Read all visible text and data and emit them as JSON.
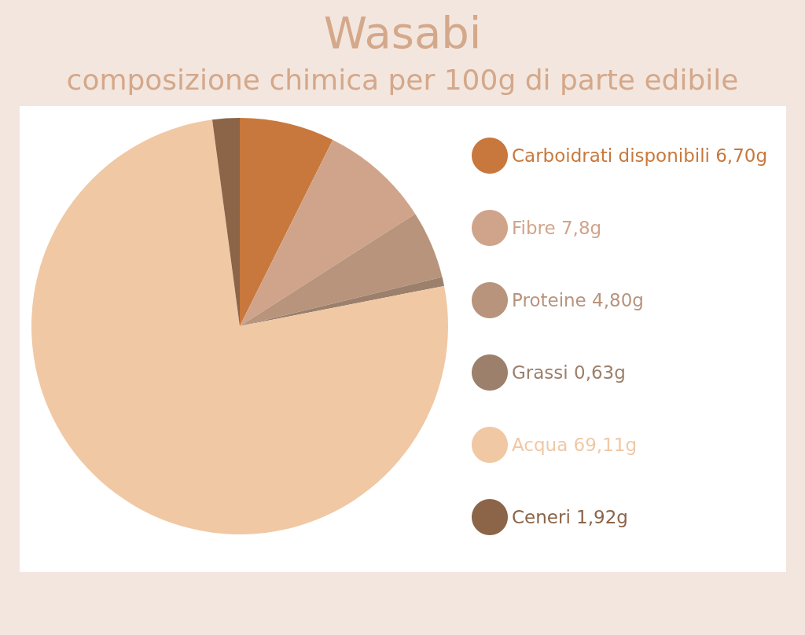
{
  "chart_data": {
    "type": "pie",
    "title": "Wasabi",
    "subtitle": "composizione chimica per 100g di parte edibile",
    "categories": [
      "Carboidrati disponibili",
      "Fibre",
      "Proteine",
      "Grassi",
      "Acqua",
      "Ceneri"
    ],
    "values": [
      6.7,
      7.8,
      4.8,
      0.63,
      69.11,
      1.92
    ],
    "value_labels": [
      "6,70g",
      "7,8g",
      "4,80g",
      "0,63g",
      "69,11g",
      "1,92g"
    ],
    "colors": [
      "#c8783c",
      "#d0a48a",
      "#b8947c",
      "#9c806c",
      "#f0c8a4",
      "#8c6448"
    ],
    "legend": "right"
  }
}
